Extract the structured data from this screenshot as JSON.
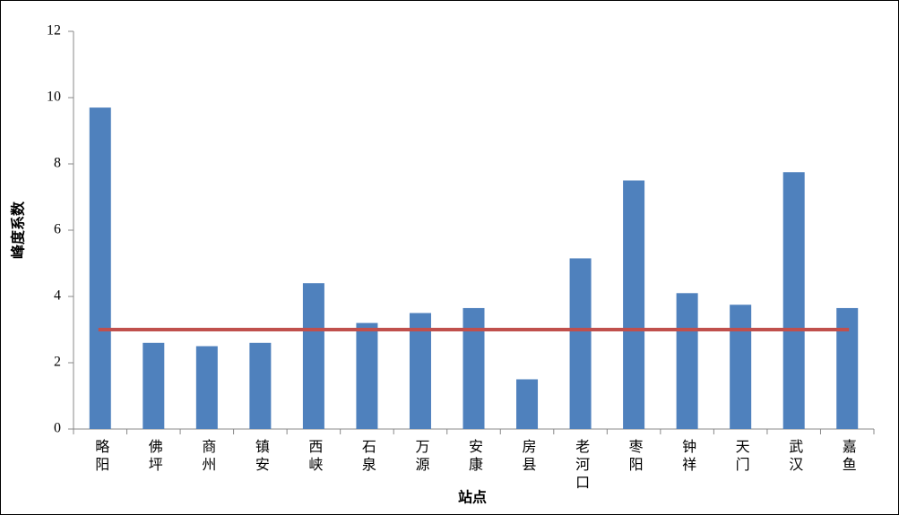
{
  "chart_data": {
    "type": "bar",
    "y_label": "峰度系数",
    "x_label": "站点",
    "categories": [
      "略阳",
      "佛坪",
      "商州",
      "镇安",
      "西峡",
      "石泉",
      "万源",
      "安康",
      "房县",
      "老河口",
      "枣阳",
      "钟祥",
      "天门",
      "武汉",
      "嘉鱼"
    ],
    "values": [
      9.7,
      2.6,
      2.5,
      2.6,
      4.4,
      3.2,
      3.5,
      3.65,
      1.5,
      5.15,
      7.5,
      4.1,
      3.75,
      7.75,
      3.65
    ],
    "color": "#4f81bd",
    "reference_line": {
      "value": 3,
      "color": "#c0504d"
    },
    "ylim": [
      0,
      12
    ],
    "yticks": [
      0,
      2,
      4,
      6,
      8,
      10,
      12
    ]
  }
}
